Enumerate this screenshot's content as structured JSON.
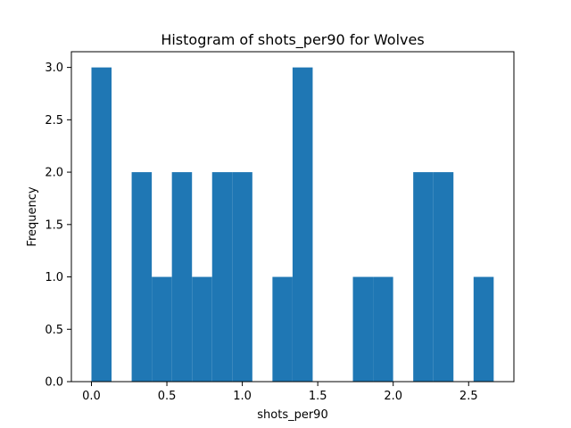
{
  "chart_data": {
    "type": "bar",
    "title": "Histogram of shots_per90 for Wolves",
    "xlabel": "shots_per90",
    "ylabel": "Frequency",
    "bar_color": "#1f77b4",
    "bin_start": 0.0,
    "bin_width": 0.1333,
    "counts": [
      3,
      0,
      2,
      1,
      2,
      1,
      2,
      2,
      0,
      1,
      3,
      0,
      0,
      1,
      1,
      0,
      2,
      2,
      0,
      1
    ],
    "xlim": [
      -0.133,
      2.8
    ],
    "ylim": [
      0,
      3.15
    ],
    "xticks": [
      "0.0",
      "0.5",
      "1.0",
      "1.5",
      "2.0",
      "2.5"
    ],
    "yticks": [
      "0.0",
      "0.5",
      "1.0",
      "1.5",
      "2.0",
      "2.5",
      "3.0"
    ],
    "grid": false,
    "legend": "none"
  }
}
